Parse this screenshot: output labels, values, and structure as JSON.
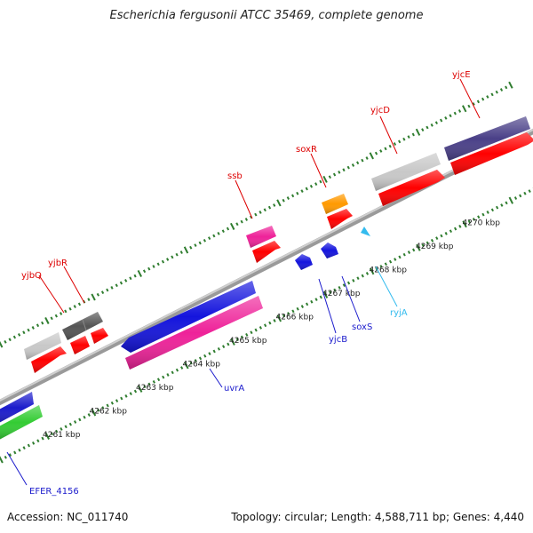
{
  "title": "Escherichia fergusonii ATCC 35469, complete genome",
  "footer": {
    "accession": "Accession: NC_011740",
    "topology": "Topology: circular; Length: 4,588,711 bp; Genes: 4,440"
  },
  "colors": {
    "backbone": "#808080",
    "cds_forward": "#ff0000",
    "tick_major": "#2f7d2f",
    "tick_minor": "#2f7d2f",
    "label_forward": "#dd0000",
    "label_reverse": "#1a1acc",
    "label_rna": "#33bbee"
  },
  "kbp_labels": [
    {
      "text": "4261 kbp",
      "kbp": 4261
    },
    {
      "text": "4262 kbp",
      "kbp": 4262
    },
    {
      "text": "4263 kbp",
      "kbp": 4263
    },
    {
      "text": "4264 kbp",
      "kbp": 4264
    },
    {
      "text": "4265 kbp",
      "kbp": 4265
    },
    {
      "text": "4266 kbp",
      "kbp": 4266
    },
    {
      "text": "4267 kbp",
      "kbp": 4267
    },
    {
      "text": "4268 kbp",
      "kbp": 4268
    },
    {
      "text": "4269 kbp",
      "kbp": 4269
    },
    {
      "text": "4270 kbp",
      "kbp": 4270
    }
  ],
  "genes": [
    {
      "name": "EFER_4156",
      "strand": "reverse",
      "color": "#1c1ccc",
      "start": 4260.3,
      "end": 4261.0
    },
    {
      "name": "EFER_4156_cds",
      "strand": "reverse",
      "color": "#33cc33",
      "start": 4260.3,
      "end": 4260.85,
      "cds_row": true
    },
    {
      "name": "yjbQ",
      "strand": "forward",
      "color": "#c8c8c8",
      "start": 4261.35,
      "end": 4261.65
    },
    {
      "name": "yjbR",
      "strand": "forward",
      "color": "#555555",
      "start": 4261.85,
      "end": 4262.15
    },
    {
      "name": "uvrA",
      "strand": "reverse",
      "color": "#1414dd",
      "start": 4263.0,
      "end": 4265.3
    },
    {
      "name": "uvrA_cds",
      "strand": "reverse",
      "color": "#ee2299",
      "start": 4263.0,
      "end": 4265.3,
      "cds_row": true
    },
    {
      "name": "ssb",
      "strand": "forward",
      "color": "#ee2299",
      "start": 4266.2,
      "end": 4266.5
    },
    {
      "name": "yjcB",
      "strand": "reverse",
      "color": "#1414dd",
      "start": 4266.9,
      "end": 4267.1
    },
    {
      "name": "soxS",
      "strand": "reverse",
      "color": "#1414dd",
      "start": 4267.35,
      "end": 4267.55
    },
    {
      "name": "soxR",
      "strand": "forward",
      "color": "#ff9900",
      "start": 4267.5,
      "end": 4267.8
    },
    {
      "name": "ryjA",
      "strand": "reverse",
      "color": "#33bbee",
      "start": 4268.3,
      "end": 4268.4
    },
    {
      "name": "yjcD",
      "strand": "forward",
      "color": "#c8c8c8",
      "start": 4268.7,
      "end": 4269.85
    },
    {
      "name": "yjcE",
      "strand": "forward",
      "color": "#4a4088",
      "start": 4270.2,
      "end": 4271.9
    }
  ],
  "labels": [
    {
      "text": "EFER_4156",
      "kind": "reverse"
    },
    {
      "text": "yjbQ",
      "kind": "forward"
    },
    {
      "text": "yjbR",
      "kind": "forward"
    },
    {
      "text": "uvrA",
      "kind": "reverse"
    },
    {
      "text": "ssb",
      "kind": "forward"
    },
    {
      "text": "soxR",
      "kind": "forward"
    },
    {
      "text": "yjcB",
      "kind": "reverse"
    },
    {
      "text": "soxS",
      "kind": "reverse"
    },
    {
      "text": "ryjA",
      "kind": "rna"
    },
    {
      "text": "yjcD",
      "kind": "forward"
    },
    {
      "text": "yjcE",
      "kind": "forward"
    }
  ]
}
